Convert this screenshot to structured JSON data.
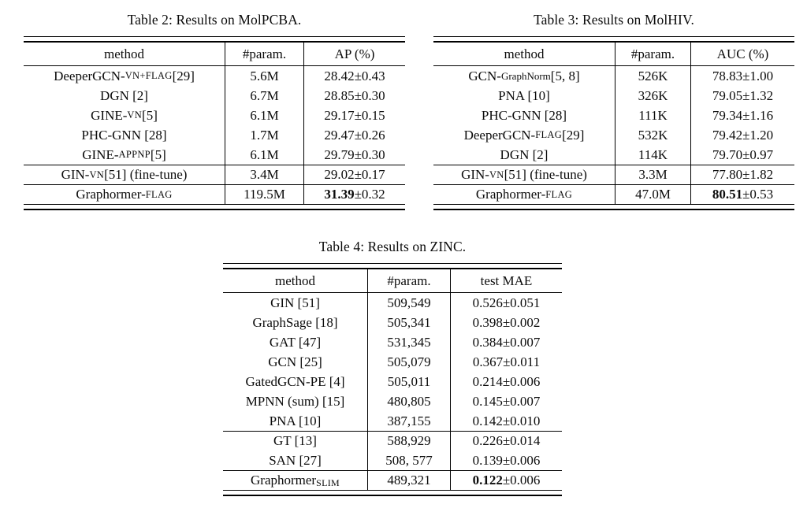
{
  "colors": {
    "background": "#ffffff",
    "text": "#0b0b0b",
    "rule": "#000000"
  },
  "tables": [
    {
      "caption": "Table 2: Results on MolPCBA.",
      "headers": [
        "method",
        "#param.",
        "AP (%)"
      ],
      "groups": [
        [
          {
            "method": [
              {
                "t": "DeeperGCN-"
              },
              {
                "t": "VN+FLAG",
                "s": "sc"
              },
              {
                "t": " [29]"
              }
            ],
            "param": "5.6M",
            "val": "28.42",
            "pm": "±0.43",
            "bold": false
          },
          {
            "method": [
              {
                "t": "DGN [2]"
              }
            ],
            "param": "6.7M",
            "val": "28.85",
            "pm": "±0.30",
            "bold": false
          },
          {
            "method": [
              {
                "t": "GINE-"
              },
              {
                "t": "VN",
                "s": "sc"
              },
              {
                "t": " [5]"
              }
            ],
            "param": "6.1M",
            "val": "29.17",
            "pm": "±0.15",
            "bold": false
          },
          {
            "method": [
              {
                "t": "PHC-GNN [28]"
              }
            ],
            "param": "1.7M",
            "val": "29.47",
            "pm": "±0.26",
            "bold": false
          },
          {
            "method": [
              {
                "t": "GINE-"
              },
              {
                "t": "APPNP",
                "s": "sc"
              },
              {
                "t": " [5]"
              }
            ],
            "param": "6.1M",
            "val": "29.79",
            "pm": "±0.30",
            "bold": false
          }
        ],
        [
          {
            "method": [
              {
                "t": "GIN-"
              },
              {
                "t": "VN",
                "s": "sc"
              },
              {
                "t": "[51] (fine-tune)"
              }
            ],
            "param": "3.4M",
            "val": "29.02",
            "pm": "±0.17",
            "bold": false
          }
        ],
        [
          {
            "method": [
              {
                "t": "Graphormer-"
              },
              {
                "t": "FLAG",
                "s": "sc"
              }
            ],
            "param": "119.5M",
            "val": "31.39",
            "pm": "±0.32",
            "bold": true
          }
        ]
      ]
    },
    {
      "caption": "Table 3: Results on MolHIV.",
      "headers": [
        "method",
        "#param.",
        "AUC (%)"
      ],
      "groups": [
        [
          {
            "method": [
              {
                "t": "GCN-"
              },
              {
                "t": "GraphNorm",
                "s": "sm"
              },
              {
                "t": " [5, 8]"
              }
            ],
            "param": "526K",
            "val": "78.83",
            "pm": "±1.00",
            "bold": false
          },
          {
            "method": [
              {
                "t": "PNA [10]"
              }
            ],
            "param": "326K",
            "val": "79.05",
            "pm": "±1.32",
            "bold": false
          },
          {
            "method": [
              {
                "t": "PHC-GNN [28]"
              }
            ],
            "param": "111K",
            "val": "79.34",
            "pm": "±1.16",
            "bold": false
          },
          {
            "method": [
              {
                "t": "DeeperGCN-"
              },
              {
                "t": "FLAG",
                "s": "sc"
              },
              {
                "t": " [29]"
              }
            ],
            "param": "532K",
            "val": "79.42",
            "pm": "±1.20",
            "bold": false
          },
          {
            "method": [
              {
                "t": "DGN [2]"
              }
            ],
            "param": "114K",
            "val": "79.70",
            "pm": "±0.97",
            "bold": false
          }
        ],
        [
          {
            "method": [
              {
                "t": "GIN-"
              },
              {
                "t": "VN",
                "s": "sc"
              },
              {
                "t": "[51] (fine-tune)"
              }
            ],
            "param": "3.3M",
            "val": "77.80",
            "pm": "±1.82",
            "bold": false
          }
        ],
        [
          {
            "method": [
              {
                "t": "Graphormer-"
              },
              {
                "t": "FLAG",
                "s": "sc"
              }
            ],
            "param": "47.0M",
            "val": "80.51",
            "pm": "±0.53",
            "bold": true
          }
        ]
      ]
    },
    {
      "caption": "Table 4: Results on ZINC.",
      "headers": [
        "method",
        "#param.",
        "test MAE"
      ],
      "groups": [
        [
          {
            "method": [
              {
                "t": "GIN [51]"
              }
            ],
            "param": "509,549",
            "val": "0.526",
            "pm": "±0.051",
            "bold": false
          },
          {
            "method": [
              {
                "t": "GraphSage [18]"
              }
            ],
            "param": "505,341",
            "val": "0.398",
            "pm": "±0.002",
            "bold": false
          },
          {
            "method": [
              {
                "t": "GAT [47]"
              }
            ],
            "param": "531,345",
            "val": "0.384",
            "pm": "±0.007",
            "bold": false
          },
          {
            "method": [
              {
                "t": "GCN [25]"
              }
            ],
            "param": "505,079",
            "val": "0.367",
            "pm": "±0.011",
            "bold": false
          },
          {
            "method": [
              {
                "t": "GatedGCN-PE [4]"
              }
            ],
            "param": "505,011",
            "val": "0.214",
            "pm": "±0.006",
            "bold": false
          },
          {
            "method": [
              {
                "t": "MPNN (sum) [15]"
              }
            ],
            "param": "480,805",
            "val": "0.145",
            "pm": "±0.007",
            "bold": false
          },
          {
            "method": [
              {
                "t": "PNA [10]"
              }
            ],
            "param": "387,155",
            "val": "0.142",
            "pm": "±0.010",
            "bold": false
          }
        ],
        [
          {
            "method": [
              {
                "t": "GT [13]"
              }
            ],
            "param": "588,929",
            "val": "0.226",
            "pm": "±0.014",
            "bold": false
          },
          {
            "method": [
              {
                "t": "SAN [27]"
              }
            ],
            "param": "508, 577",
            "val": "0.139",
            "pm": "±0.006",
            "bold": false
          }
        ],
        [
          {
            "method": [
              {
                "t": "Graphormer"
              },
              {
                "t": "SLIM",
                "s": "sub"
              }
            ],
            "param": "489,321",
            "val": "0.122",
            "pm": "±0.006",
            "bold": true
          }
        ]
      ]
    }
  ]
}
